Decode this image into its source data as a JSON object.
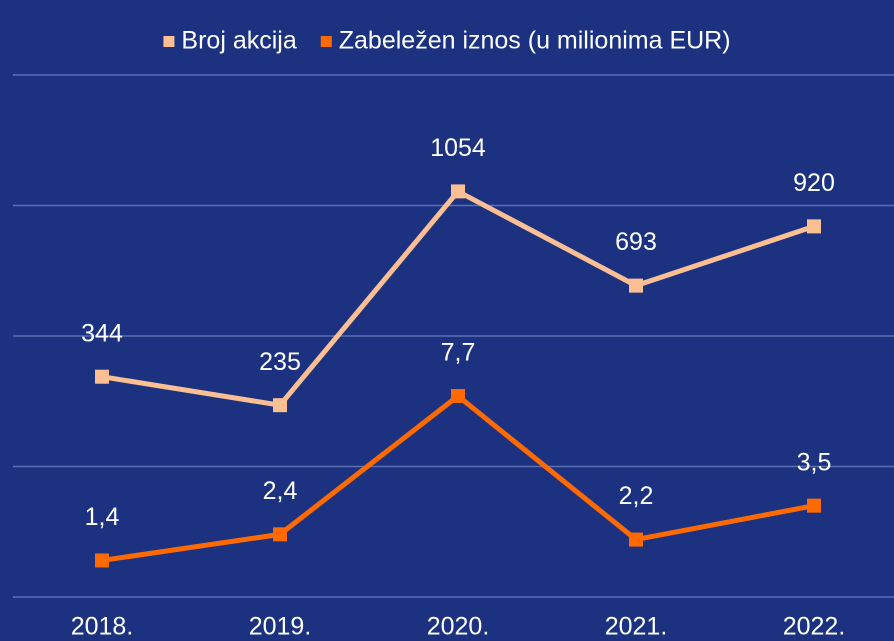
{
  "chart_data": {
    "type": "line",
    "categories": [
      "2018.",
      "2019.",
      "2020.",
      "2021.",
      "2022."
    ],
    "series": [
      {
        "name": "Broj akcija",
        "color": "#fbbf94",
        "values": [
          344,
          235,
          1054,
          693,
          920
        ]
      },
      {
        "name": "Zabeležen iznos (u milionima EUR)",
        "color": "#ff6a00",
        "axis": "y2",
        "values": [
          1.4,
          2.4,
          7.7,
          2.2,
          3.5
        ],
        "value_labels": [
          "1,4",
          "2,4",
          "7,7",
          "2,2",
          "3,5"
        ]
      }
    ],
    "ylim": [
      -500,
      1500
    ],
    "yticks": [
      -500,
      0,
      500,
      1000,
      1500
    ],
    "y2lim": [
      0,
      20
    ],
    "grid": true,
    "legend": "top"
  }
}
